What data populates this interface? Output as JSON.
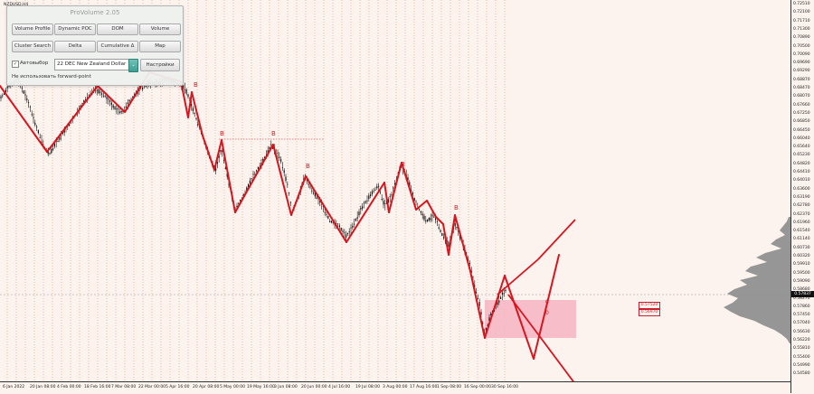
{
  "symbol": "NZDUSD,H4",
  "panel": {
    "title": "ProVolume 2.05",
    "buttons": [
      {
        "label": "Volume Profile",
        "active": true
      },
      {
        "label": "Dynamic POC",
        "active": false
      },
      {
        "label": "DOM",
        "active": false
      },
      {
        "label": "Volume",
        "active": false
      },
      {
        "label": "Cluster Search",
        "active": false
      },
      {
        "label": "Delta",
        "active": false
      },
      {
        "label": "Cumulative Δ",
        "active": false
      },
      {
        "label": "Map",
        "active": false
      }
    ],
    "auto_checkbox": "✓",
    "auto_label": "Автовыбор",
    "symbol_value": "22 DEC New Zealand Dollar",
    "dropdown_arrow": "⌄",
    "settings_label": "Настройки",
    "forward_label": "Не использовать forward-point"
  },
  "price_axis": {
    "ticks": [
      "0.72510",
      "0.72100",
      "0.71710",
      "0.71300",
      "0.70890",
      "0.70500",
      "0.70090",
      "0.69690",
      "0.69290",
      "0.68870",
      "0.68470",
      "0.68070",
      "0.67660",
      "0.67250",
      "0.66850",
      "0.66450",
      "0.66040",
      "0.65640",
      "0.65230",
      "0.64820",
      "0.64410",
      "0.64010",
      "0.63600",
      "0.63190",
      "0.62780",
      "0.62370",
      "0.61960",
      "0.61540",
      "0.61140",
      "0.60730",
      "0.60320",
      "0.59910",
      "0.59500",
      "0.59090",
      "0.58680",
      "0.58270",
      "0.57860",
      "0.57450",
      "0.57040",
      "0.56630",
      "0.56220",
      "0.55810",
      "0.55400",
      "0.54990",
      "0.54580"
    ],
    "current_price": "0.57837"
  },
  "time_axis": {
    "ticks": [
      "6 Jan 2022",
      "20 Jan 08:00",
      "4 Feb 00:00",
      "18 Feb 16:00",
      "7 Mar 08:00",
      "22 Mar 00:00",
      "5 Apr 16:00",
      "20 Apr 08:00",
      "5 May 00:00",
      "19 May 16:00",
      "3 Jun 08:00",
      "20 Jun 00:00",
      "4 Jul 16:00",
      "19 Jul 08:00",
      "3 Aug 00:00",
      "17 Aug 16:00",
      "1 Sep 08:00",
      "16 Sep 00:00",
      "30 Sep 16:00"
    ]
  },
  "wave_markers": [
    "B",
    "B",
    "B",
    "B",
    "B",
    "B"
  ],
  "box_markers": [
    "0",
    "0"
  ],
  "level_labels": [
    "0.57520",
    "0.56970"
  ],
  "colors": {
    "background": "#fdf3ee",
    "candle": "#111111",
    "zigzag": "#d9141e",
    "box": "#f6b3c1",
    "grid": "#d9a07a",
    "profile": "#8c8c8c"
  }
}
